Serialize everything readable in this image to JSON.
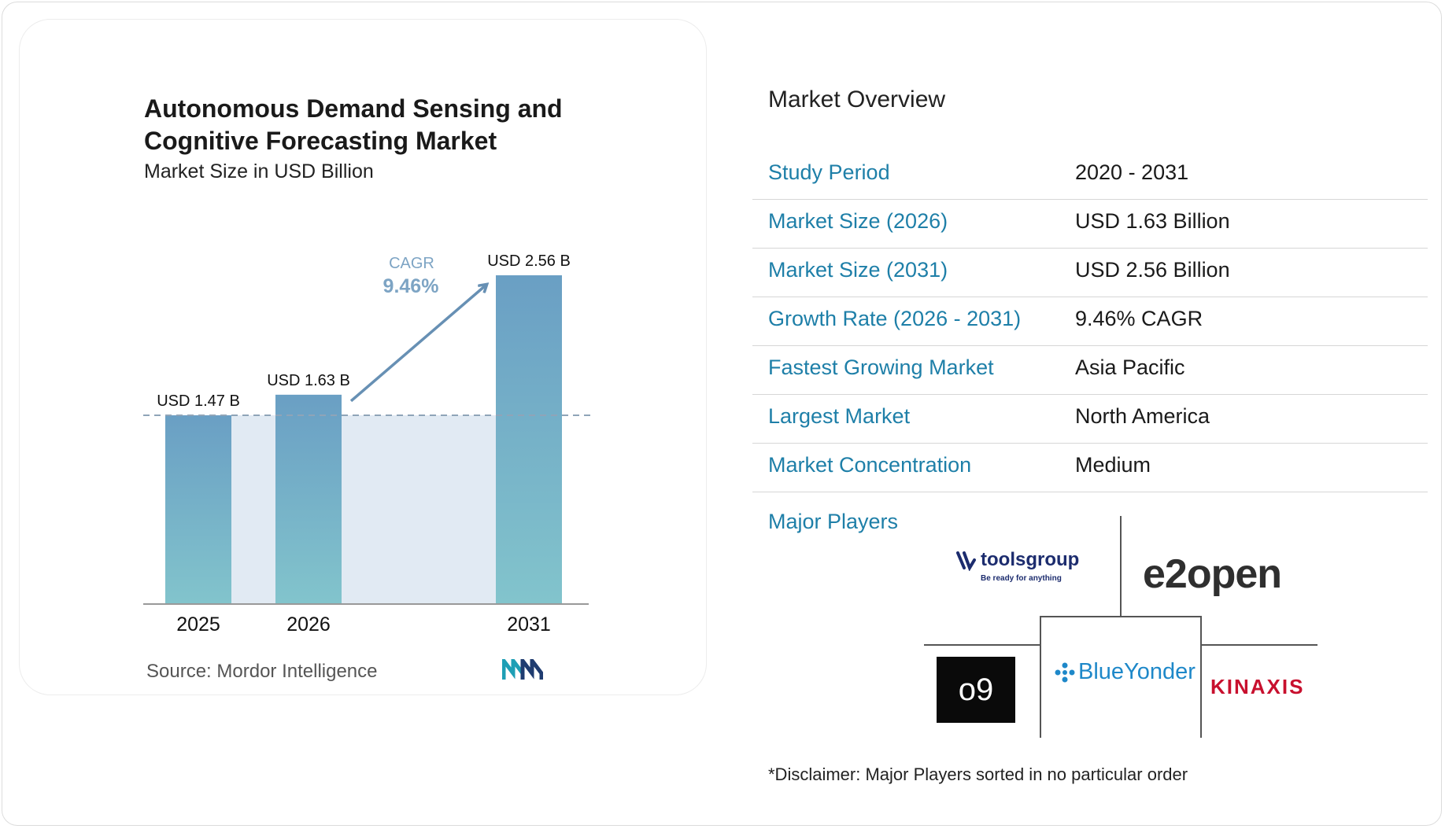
{
  "chart_data": {
    "type": "bar",
    "title": "Autonomous Demand Sensing and Cognitive Forecasting Market",
    "subtitle": "Market Size in USD Billion",
    "categories": [
      "2025",
      "2026",
      "2031"
    ],
    "values": [
      1.47,
      1.63,
      2.56
    ],
    "data_labels": [
      "USD 1.47 B",
      "USD 1.63 B",
      "USD 2.56 B"
    ],
    "cagr_label": "CAGR",
    "cagr_value": "9.46%",
    "ylim": [
      0,
      2.56
    ],
    "grid": false,
    "colors": {
      "bar_top": "#6a9fc4",
      "bar_bottom": "#82c4cc",
      "band": "#e1eaf3",
      "arrow": "#6790b4",
      "cagr_text": "#7da4c4",
      "dash": "#8fa4b8"
    }
  },
  "source": {
    "label": "Source:",
    "name": "Mordor Intelligence"
  },
  "overview": {
    "title": "Market Overview",
    "rows": [
      {
        "label": "Study Period",
        "value": "2020 - 2031"
      },
      {
        "label": "Market Size (2026)",
        "value": "USD 1.63 Billion"
      },
      {
        "label": "Market Size (2031)",
        "value": "USD 2.56 Billion"
      },
      {
        "label": "Growth Rate (2026 - 2031)",
        "value": "9.46% CAGR"
      },
      {
        "label": "Fastest Growing Market",
        "value": "Asia Pacific"
      },
      {
        "label": "Largest Market",
        "value": "North America"
      },
      {
        "label": "Market Concentration",
        "value": "Medium"
      }
    ],
    "major_players_label": "Major Players",
    "players": {
      "toolsgroup": {
        "name": "toolsgroup",
        "tagline": "Be ready for anything"
      },
      "e2open": {
        "name": "e2open"
      },
      "o9": {
        "name": "o9"
      },
      "blueyonder": {
        "name": "BlueYonder"
      },
      "kinaxis": {
        "name": "KINAXIS"
      }
    },
    "disclaimer": "*Disclaimer: Major Players sorted in no particular order"
  }
}
